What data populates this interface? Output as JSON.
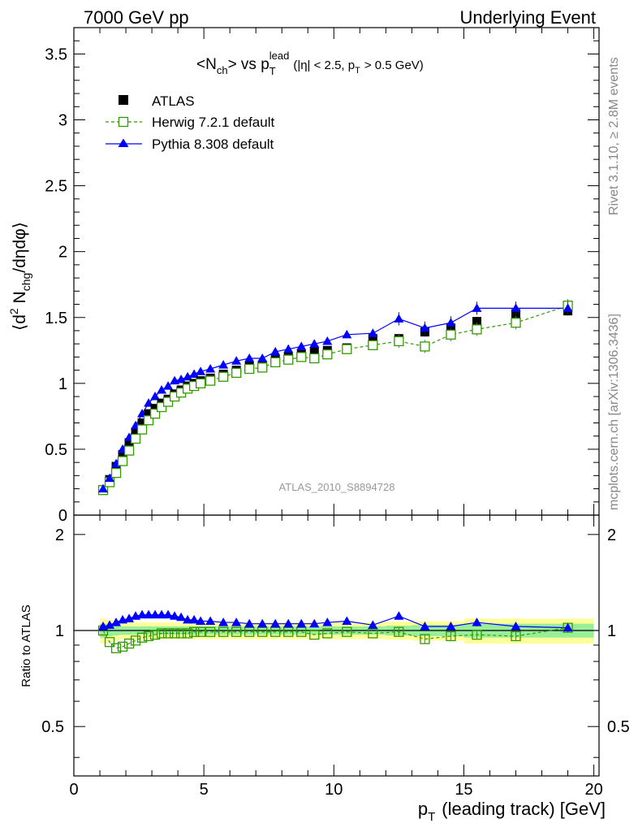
{
  "header": {
    "left": "7000 GeV pp",
    "right": "Underlying Event"
  },
  "side_labels": {
    "rivet": "Rivet 3.1.10, ≥ 2.8M events",
    "mcplots": "mcplots.cern.ch [arXiv:1306.3436]"
  },
  "chart_data": [
    {
      "type": "scatter",
      "title": "<N_ch> vs p_T^lead (|η| < 2.5, p_T > 0.5 GeV)",
      "title_parts": {
        "main": "<N",
        "main_sub": "ch",
        "mid": "> vs p",
        "mid_sub": "T",
        "mid_sup": "lead",
        "tail": "(|η| < 2.5, p",
        "tail_sub": "T",
        "end": "> 0.5 GeV)"
      },
      "ylabel": "⟨d² N_chg/dηdφ⟩",
      "ylabel_parts": {
        "open": "⟨d",
        "sup": "2",
        "n": " N",
        "sub": "chg",
        "close": "/dηdφ⟩"
      },
      "ylim": [
        0,
        3.7
      ],
      "xlim": [
        0,
        20.2
      ],
      "yticks": [
        "0.5",
        "1",
        "1.5",
        "2",
        "2.5",
        "3",
        "3.5"
      ],
      "y_bottom_tick": "0",
      "watermark": "ATLAS_2010_S8894728",
      "legend_position": "top-left",
      "x": [
        1.125,
        1.375,
        1.625,
        1.875,
        2.125,
        2.375,
        2.625,
        2.875,
        3.125,
        3.375,
        3.625,
        3.875,
        4.125,
        4.375,
        4.625,
        4.875,
        5.25,
        5.75,
        6.25,
        6.75,
        7.25,
        7.75,
        8.25,
        8.75,
        9.25,
        9.75,
        10.5,
        11.5,
        12.5,
        13.5,
        14.5,
        15.5,
        17.0,
        19.0
      ],
      "series": [
        {
          "name": "ATLAS",
          "color": "#000000",
          "marker": "filled-square",
          "y": [
            0.19,
            0.27,
            0.37,
            0.46,
            0.55,
            0.63,
            0.7,
            0.77,
            0.81,
            0.85,
            0.88,
            0.92,
            0.95,
            0.98,
            1.0,
            1.02,
            1.04,
            1.07,
            1.1,
            1.13,
            1.14,
            1.18,
            1.2,
            1.22,
            1.24,
            1.25,
            1.27,
            1.34,
            1.34,
            1.39,
            1.42,
            1.47,
            1.53,
            1.55
          ]
        },
        {
          "name": "Herwig 7.2.1 default",
          "color": "#339900",
          "marker": "open-square",
          "y": [
            0.19,
            0.25,
            0.32,
            0.41,
            0.49,
            0.58,
            0.65,
            0.72,
            0.77,
            0.82,
            0.86,
            0.9,
            0.93,
            0.96,
            0.98,
            1.0,
            1.02,
            1.05,
            1.08,
            1.11,
            1.12,
            1.16,
            1.18,
            1.2,
            1.19,
            1.22,
            1.26,
            1.29,
            1.32,
            1.28,
            1.37,
            1.41,
            1.46,
            1.59
          ]
        },
        {
          "name": "Pythia 8.308 default",
          "color": "#0000ff",
          "marker": "filled-triangle",
          "y": [
            0.2,
            0.28,
            0.39,
            0.5,
            0.59,
            0.68,
            0.77,
            0.85,
            0.9,
            0.95,
            0.98,
            1.02,
            1.03,
            1.05,
            1.07,
            1.09,
            1.11,
            1.14,
            1.17,
            1.19,
            1.19,
            1.24,
            1.26,
            1.28,
            1.3,
            1.32,
            1.37,
            1.38,
            1.49,
            1.42,
            1.46,
            1.57,
            1.57,
            1.57
          ]
        }
      ]
    },
    {
      "type": "line",
      "ylabel": "Ratio to ATLAS",
      "xlabel": "p_T (leading track) [GeV]",
      "xlabel_parts": {
        "p": "p",
        "sub": "T",
        "rest": "(leading track) [GeV]"
      },
      "ylim": [
        0.35,
        2.3
      ],
      "xlim": [
        0,
        20.2
      ],
      "yticks": [
        "0.5",
        "1",
        "2"
      ],
      "xticks": [
        "0",
        "5",
        "10",
        "15",
        "20"
      ],
      "series": [
        {
          "name": "Herwig 7.2.1 default",
          "color": "#339900",
          "y": [
            1.0,
            0.92,
            0.88,
            0.89,
            0.91,
            0.93,
            0.95,
            0.96,
            0.97,
            0.98,
            0.98,
            0.98,
            0.98,
            0.98,
            0.99,
            0.99,
            0.99,
            0.99,
            0.99,
            0.99,
            0.99,
            0.99,
            0.99,
            0.99,
            0.97,
            0.98,
            0.99,
            0.98,
            0.99,
            0.94,
            0.96,
            0.97,
            0.96,
            1.02
          ]
        },
        {
          "name": "Pythia 8.308 default",
          "color": "#0000ff",
          "y": [
            1.03,
            1.04,
            1.06,
            1.08,
            1.09,
            1.11,
            1.12,
            1.12,
            1.12,
            1.12,
            1.12,
            1.11,
            1.1,
            1.08,
            1.08,
            1.07,
            1.07,
            1.06,
            1.06,
            1.05,
            1.05,
            1.05,
            1.05,
            1.05,
            1.05,
            1.06,
            1.07,
            1.04,
            1.11,
            1.03,
            1.03,
            1.06,
            1.03,
            1.02
          ]
        }
      ],
      "band_inner": [
        0.05,
        0.04,
        0.035,
        0.03,
        0.03,
        0.03,
        0.03,
        0.03,
        0.03,
        0.03,
        0.03,
        0.03,
        0.03,
        0.03,
        0.03,
        0.03,
        0.03,
        0.03,
        0.03,
        0.03,
        0.03,
        0.03,
        0.03,
        0.03,
        0.03,
        0.03,
        0.03,
        0.03,
        0.035,
        0.04,
        0.04,
        0.05,
        0.05,
        0.05
      ],
      "band_outer": [
        0.09,
        0.08,
        0.07,
        0.06,
        0.06,
        0.06,
        0.06,
        0.06,
        0.06,
        0.06,
        0.06,
        0.06,
        0.06,
        0.06,
        0.06,
        0.06,
        0.06,
        0.06,
        0.06,
        0.06,
        0.06,
        0.06,
        0.06,
        0.06,
        0.06,
        0.06,
        0.06,
        0.06,
        0.065,
        0.07,
        0.07,
        0.09,
        0.09,
        0.09
      ]
    }
  ]
}
